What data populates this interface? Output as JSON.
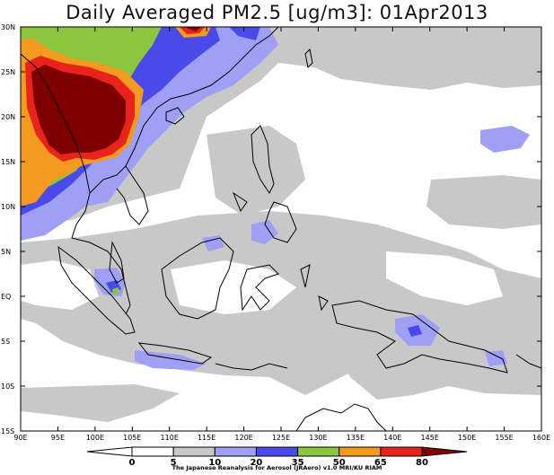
{
  "title": "Daily Averaged PM2.5 [ug/m3]: 01Apr2013",
  "lat_labels": [
    "30N",
    "25N",
    "20N",
    "15N",
    "10N",
    "5N",
    "EQ",
    "5S",
    "10S",
    "15S"
  ],
  "lon_labels": [
    "90E",
    "95E",
    "100E",
    "105E",
    "110E",
    "115E",
    "120E",
    "125E",
    "130E",
    "135E",
    "140E",
    "145E",
    "150E",
    "155E",
    "160E"
  ],
  "colorbar": {
    "labels": [
      "0",
      "5",
      "10",
      "20",
      "35",
      "50",
      "65",
      "80"
    ],
    "colors": [
      "#ffffff",
      "#ffffff",
      "#c8c8c8",
      "#9f9ff5",
      "#4a4ae8",
      "#8cc63f",
      "#f39a1f",
      "#e8231c",
      "#7f0000"
    ]
  },
  "credit": "The Japanese Reanalysis for Aerosol (JRAero) v1.0 MRI/KU RIAM"
}
